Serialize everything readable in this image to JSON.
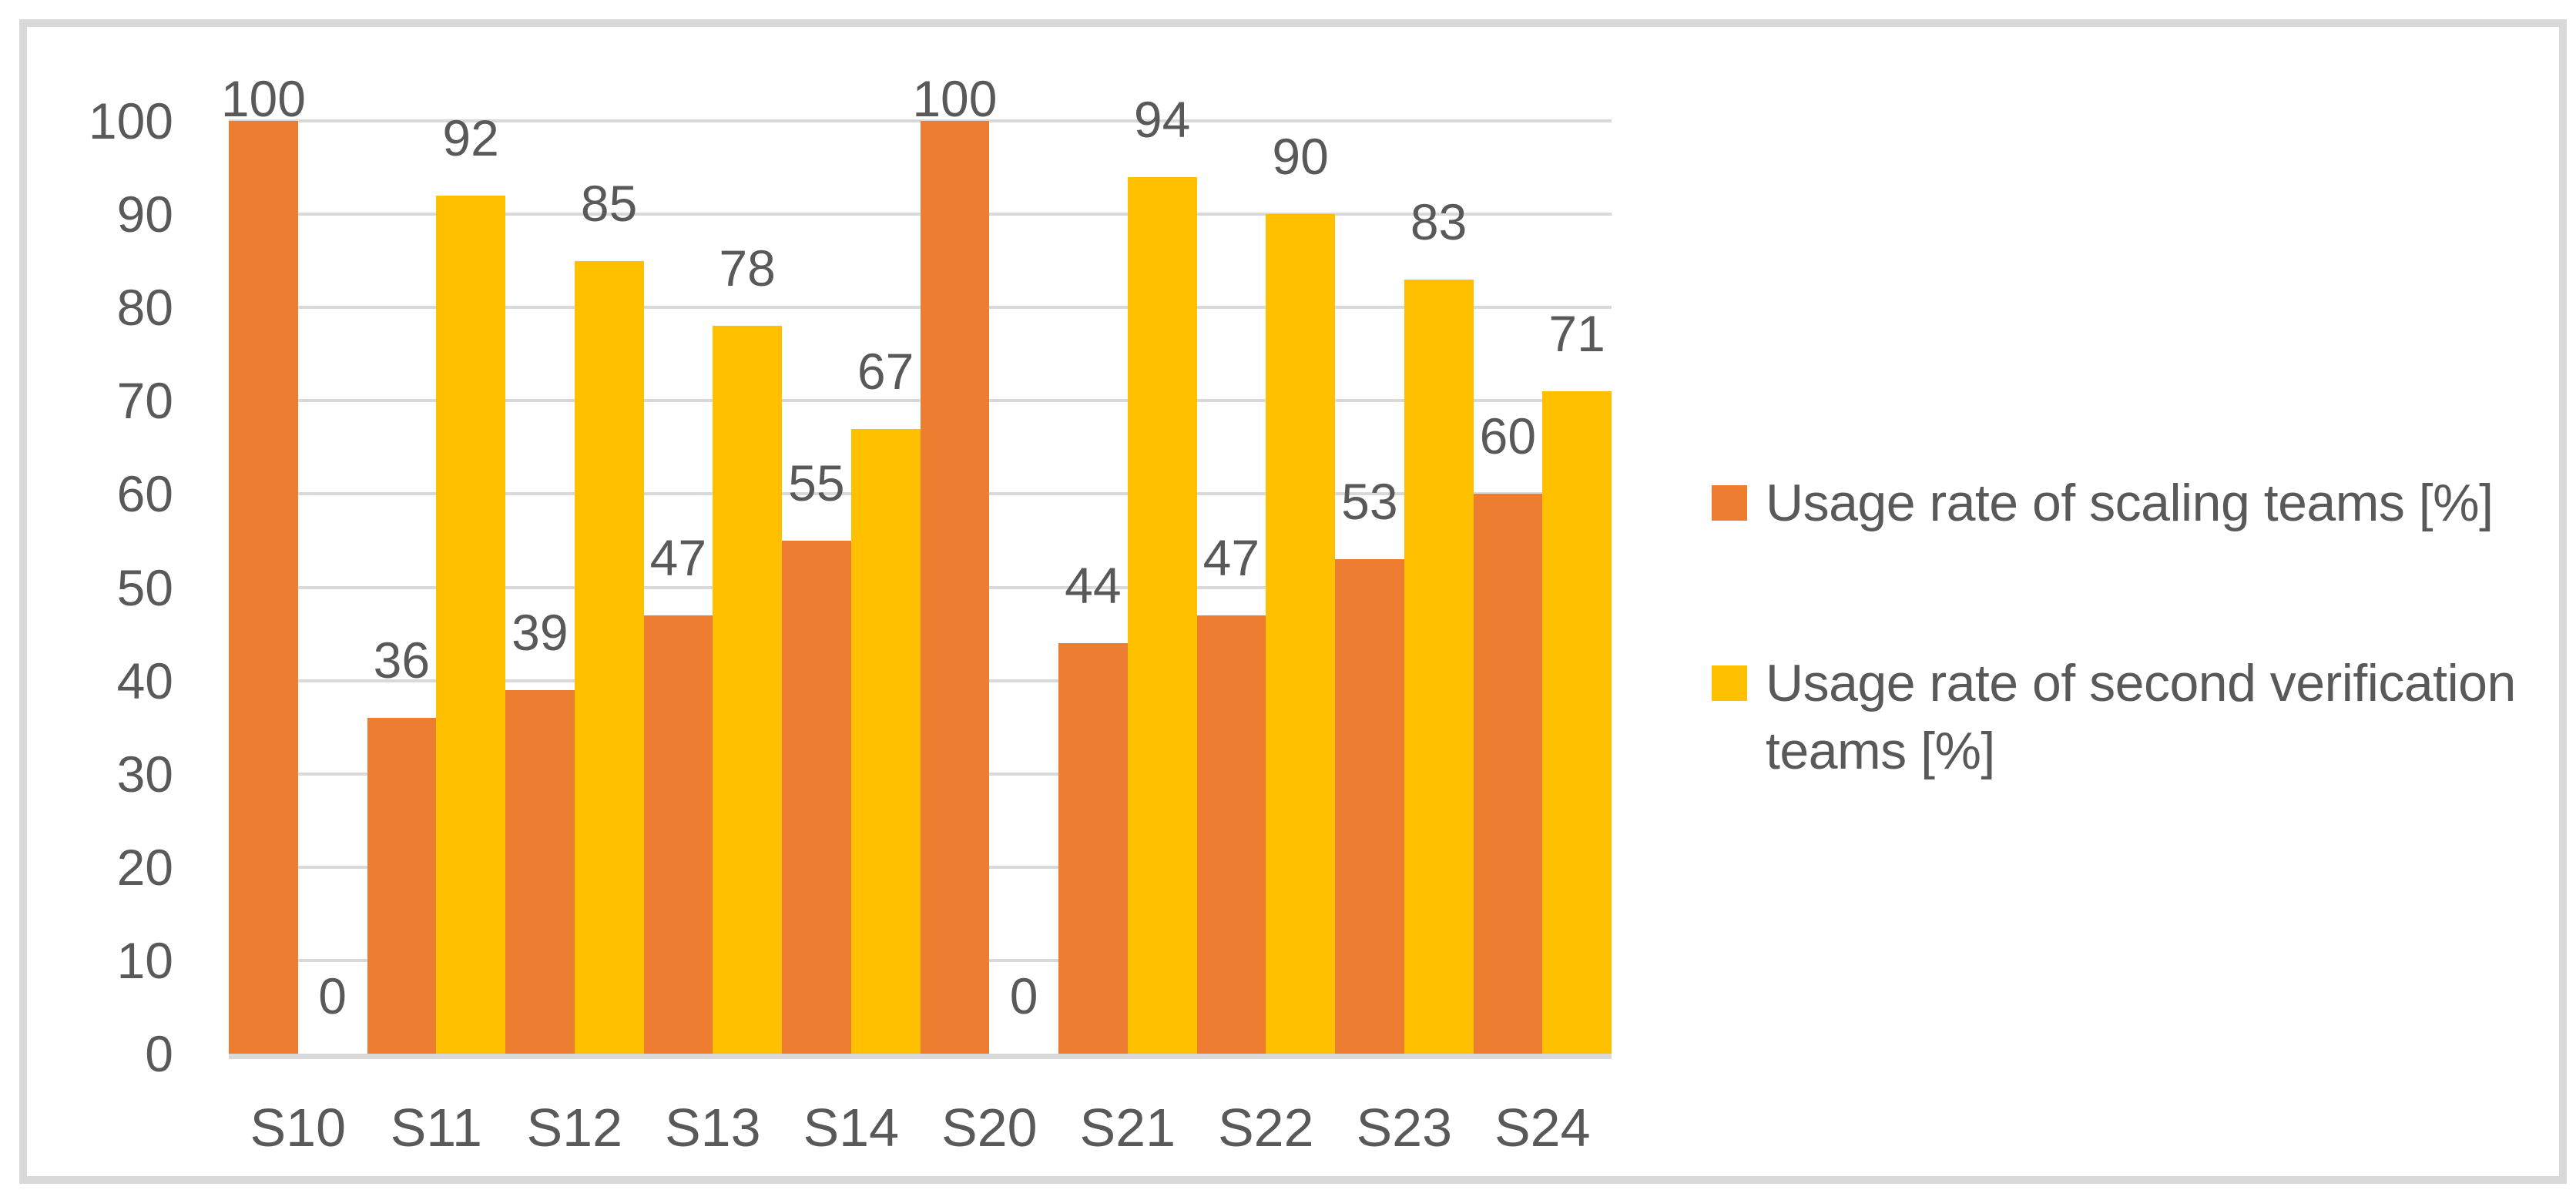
{
  "window": {
    "background": "#FFFFFF"
  },
  "frame": {
    "border_color": "#D9D9D9",
    "fill": "#FFFFFF"
  },
  "chart_data": {
    "type": "bar",
    "title": "",
    "xlabel": "",
    "ylabel": "",
    "categories": [
      "S10",
      "S11",
      "S12",
      "S13",
      "S14",
      "S20",
      "S21",
      "S22",
      "S23",
      "S24"
    ],
    "series": [
      {
        "name": "Usage rate of scaling teams [%]",
        "key": "scaling",
        "color": "#ED7D31",
        "values": [
          100,
          36,
          39,
          47,
          55,
          100,
          44,
          47,
          53,
          60
        ]
      },
      {
        "name": "Usage rate of second verification teams [%]",
        "key": "second-verification",
        "color": "#FFC000",
        "values": [
          0,
          92,
          85,
          78,
          67,
          0,
          94,
          90,
          83,
          71
        ]
      }
    ],
    "ylim": [
      0,
      100
    ],
    "yticks": [
      0,
      10,
      20,
      30,
      40,
      50,
      60,
      70,
      80,
      90,
      100
    ],
    "grid": true,
    "gridline_color": "#D9D9D9",
    "axis_line_color": "#D9D9D9",
    "text_color": "#595959",
    "data_labels": "outside-end",
    "legend_position": "right",
    "bar_gap": 0
  },
  "legend": {
    "items": [
      {
        "key": "scaling",
        "color": "#ED7D31",
        "label_lines": [
          "Usage rate of scaling teams [%]"
        ]
      },
      {
        "key": "second-verification",
        "color": "#FFC000",
        "label_lines": [
          "Usage rate of second verification",
          "teams [%]"
        ]
      }
    ]
  }
}
